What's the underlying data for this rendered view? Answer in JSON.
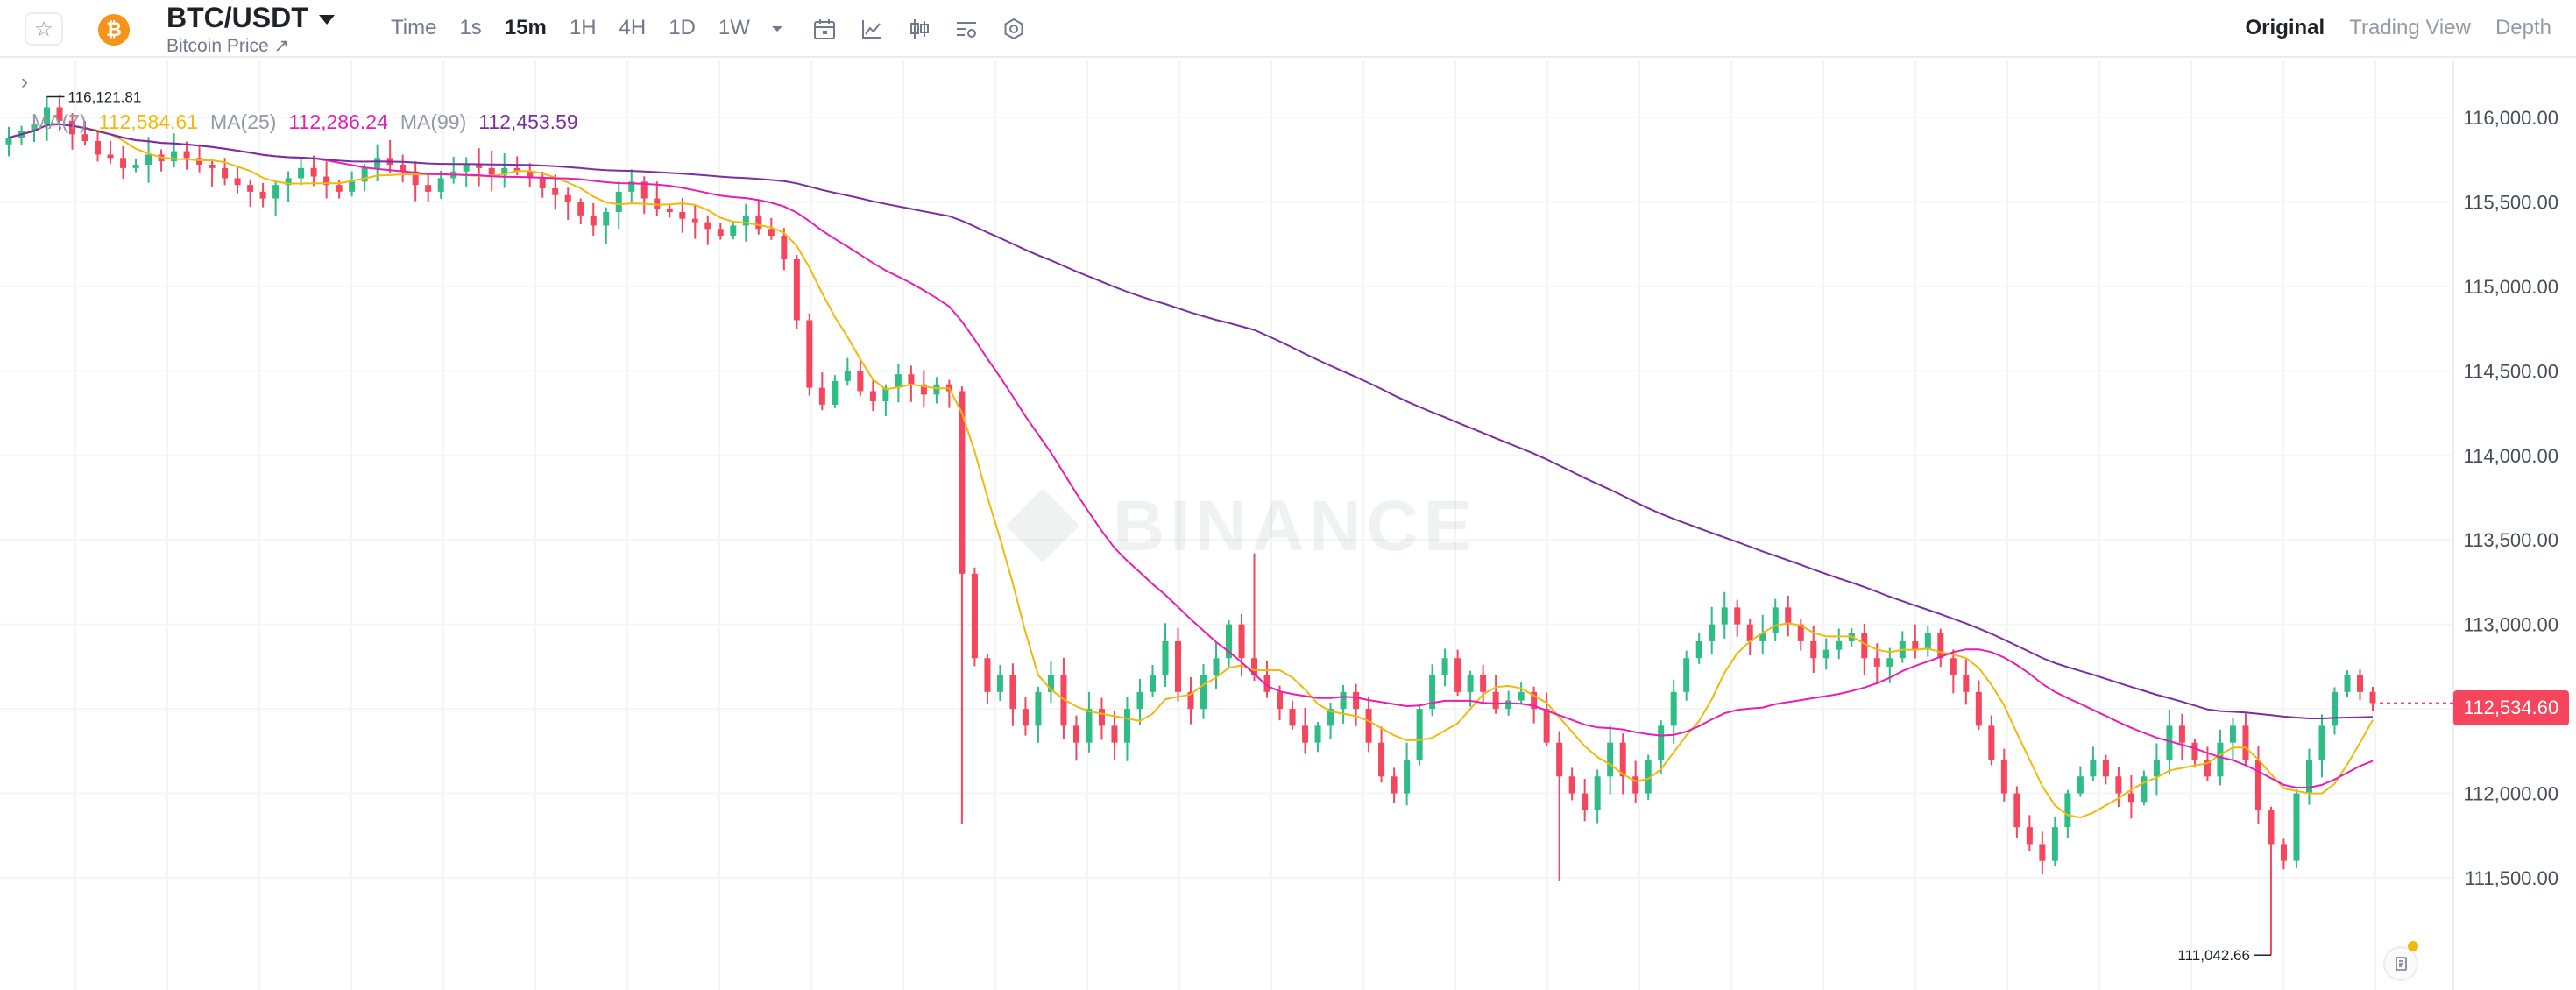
{
  "header": {
    "symbol": "BTC/USDT",
    "subtitle": "Bitcoin Price ↗",
    "coin_glyph": "₿",
    "favorite_icon": "star-icon",
    "intervals": [
      "Time",
      "1s",
      "15m",
      "1H",
      "4H",
      "1D",
      "1W"
    ],
    "active_interval": "15m",
    "toolbar_icons": [
      "chevron-down-icon",
      "calendar-icon",
      "indicator-icon",
      "candle-type-icon",
      "settings-list-icon",
      "gear-icon"
    ],
    "views": [
      "Original",
      "Trading View",
      "Depth"
    ],
    "active_view": "Original"
  },
  "colors": {
    "up": "#2ebd85",
    "down": "#f6465d",
    "ma7": "#f0b90b",
    "ma25": "#e81eb2",
    "ma99": "#7b2ea3",
    "brand": "#f0b90b"
  },
  "legend": {
    "ma7_label": "MA(7)",
    "ma7_value": "112,584.61",
    "ma25_label": "MA(25)",
    "ma25_value": "112,286.24",
    "ma99_label": "MA(99)",
    "ma99_value": "112,453.59"
  },
  "watermark": "BINANCE",
  "current_price": "112,534.60",
  "high_label": "116,121.81",
  "low_label": "111,042.66",
  "price_axis": [
    "116,000.00",
    "115,500.00",
    "115,000.00",
    "114,500.00",
    "114,000.00",
    "113,500.00",
    "113,000.00",
    "112,500.00",
    "112,000.00",
    "111,500.00"
  ],
  "chart_data": {
    "type": "candlestick",
    "title": "",
    "ylim": [
      110960,
      116300
    ],
    "y_ticks": [
      116000,
      115500,
      115000,
      114500,
      114000,
      113500,
      113000,
      112500,
      112000,
      111500
    ],
    "grid": true,
    "current_price": 112534.6,
    "high": 116121.81,
    "low": 111042.66,
    "close_series": [
      115880,
      115920,
      115960,
      116060,
      115980,
      115900,
      115860,
      115780,
      115760,
      115700,
      115720,
      115780,
      115740,
      115800,
      115760,
      115720,
      115700,
      115640,
      115600,
      115560,
      115520,
      115600,
      115640,
      115700,
      115650,
      115600,
      115560,
      115620,
      115700,
      115760,
      115720,
      115680,
      115600,
      115560,
      115640,
      115680,
      115720,
      115700,
      115660,
      115700,
      115680,
      115640,
      115580,
      115540,
      115500,
      115420,
      115360,
      115440,
      115560,
      115620,
      115520,
      115460,
      115440,
      115400,
      115380,
      115340,
      115300,
      115360,
      115420,
      115340,
      115300,
      115160,
      114800,
      114400,
      114300,
      114440,
      114500,
      114380,
      114320,
      114400,
      114480,
      114420,
      114360,
      114420,
      114380,
      113300,
      112800,
      112600,
      112700,
      112500,
      112400,
      112600,
      112700,
      112400,
      112300,
      112500,
      112400,
      112300,
      112500,
      112600,
      112700,
      112900,
      112600,
      112500,
      112700,
      112800,
      113000,
      112800,
      112700,
      112600,
      112500,
      112400,
      112300,
      112400,
      112500,
      112600,
      112500,
      112300,
      112100,
      112000,
      112200,
      112500,
      112700,
      112800,
      112600,
      112700,
      112600,
      112500,
      112550,
      112600,
      112500,
      112300,
      112100,
      112000,
      111900,
      112100,
      112300,
      112100,
      112000,
      112200,
      112400,
      112600,
      112800,
      112900,
      113000,
      113100,
      113000,
      112900,
      112950,
      113100,
      113000,
      112900,
      112800,
      112850,
      112900,
      112950,
      112800,
      112750,
      112800,
      112900,
      112850,
      112950,
      112800,
      112700,
      112600,
      112400,
      112200,
      112000,
      111800,
      111700,
      111600,
      111800,
      112000,
      112100,
      112200,
      112100,
      112000,
      111950,
      112100,
      112200,
      112400,
      112300,
      112200,
      112100,
      112300,
      112400,
      112200,
      111900,
      111700,
      111600,
      112000,
      112200,
      112400,
      112600,
      112700,
      112600,
      112534.6
    ],
    "ma_series": [
      {
        "name": "MA(7)",
        "value": 112584.61
      },
      {
        "name": "MA(25)",
        "value": 112286.24
      },
      {
        "name": "MA(99)",
        "value": 112453.59
      }
    ]
  }
}
